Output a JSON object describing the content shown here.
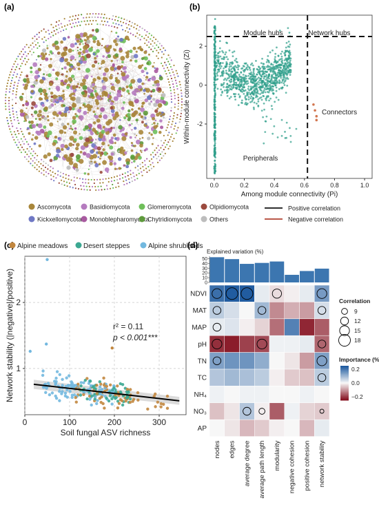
{
  "panels": {
    "a": {
      "label": "(a)"
    },
    "b": {
      "label": "(b)"
    },
    "c": {
      "label": "(c)"
    },
    "d": {
      "label": "(d)"
    }
  },
  "network_legend": {
    "phyla": [
      {
        "name": "Ascomycota",
        "color": "#a8863a"
      },
      {
        "name": "Basidiomycota",
        "color": "#b57bbf"
      },
      {
        "name": "Glomeromycota",
        "color": "#6fbf5a"
      },
      {
        "name": "Olpidiomycota",
        "color": "#9b4a3e"
      },
      {
        "name": "Kickxellomycota",
        "color": "#6f78c4"
      },
      {
        "name": "Monoblepharomycota",
        "color": "#a85aa0"
      },
      {
        "name": "Chytridiomycota",
        "color": "#5e9a3c"
      },
      {
        "name": "Others",
        "color": "#bdbdbd"
      }
    ],
    "edges": [
      {
        "name": "Positive correlation",
        "color": "#111111"
      },
      {
        "name": "Negative correlation",
        "color": "#b0402f"
      }
    ]
  },
  "chart_data": [
    {
      "panel": "b",
      "type": "scatter",
      "xlabel": "Among module connectivity (Pi)",
      "ylabel": "Within-module connectivity (Zi)",
      "xlim": [
        -0.05,
        1.05
      ],
      "ylim": [
        -4.8,
        3.6
      ],
      "xticks": [
        "0.0",
        "0.2",
        "0.4",
        "0.6",
        "0.8",
        "1.0"
      ],
      "yticks": [
        "-2",
        "0",
        "2"
      ],
      "thresholds": {
        "x": 0.62,
        "y": 2.5
      },
      "region_labels": [
        "Module hubs",
        "Network hubs",
        "Connectors",
        "Peripherals"
      ],
      "point_colors": {
        "nodes": "#2e9e8a",
        "connectors": "#d2764f"
      },
      "connectors": [
        [
          0.66,
          -1.0
        ],
        [
          0.68,
          -1.6
        ],
        [
          0.68,
          -1.8
        ],
        [
          0.67,
          -1.3
        ]
      ],
      "grid": false
    },
    {
      "panel": "c",
      "type": "scatter",
      "legend": [
        {
          "name": "Alpine meadows",
          "color": "#c2873f"
        },
        {
          "name": "Desert steppes",
          "color": "#3ca892"
        },
        {
          "name": "Alpine shrublands",
          "color": "#72b8df"
        }
      ],
      "legend_placement": "top",
      "xlabel": "Soil fungal ASV richness",
      "ylabel": "Network stability (|negative|/positive)",
      "xlim": [
        0,
        360
      ],
      "ylim": [
        0.3,
        2.7
      ],
      "xticks": [
        "0",
        "100",
        "200",
        "300"
      ],
      "yticks": [
        "1",
        "2"
      ],
      "annotation_r2": "r² = 0.11",
      "annotation_p": "p < 0.001***",
      "fit": {
        "x": [
          20,
          345
        ],
        "y": [
          0.76,
          0.51
        ]
      },
      "outliers": [
        [
          50,
          2.65
        ],
        [
          12,
          1.26
        ],
        [
          48,
          1.37
        ],
        [
          195,
          1.31
        ]
      ],
      "grid": true
    },
    {
      "panel": "d",
      "type": "heatmap",
      "bar_title": "Explained variation (%)",
      "bar_yticks": [
        "0",
        "10",
        "20",
        "30",
        "40",
        "50"
      ],
      "columns": [
        "nodes",
        "edges",
        "average degree",
        "average path length",
        "modularity",
        "negative cohesion",
        "positive cohesion",
        "network stability"
      ],
      "rows": [
        "NDVI",
        "MAT",
        "MAP",
        "pH",
        "TN",
        "TC",
        "NH₄",
        "NO₃",
        "AP"
      ],
      "explained_variation": [
        53,
        49,
        39,
        41,
        44,
        16,
        24,
        29
      ],
      "importance": [
        [
          0.22,
          0.26,
          0.26,
          0.02,
          -0.03,
          -0.01,
          0.02,
          0.15
        ],
        [
          0.07,
          0.04,
          0.0,
          0.1,
          -0.12,
          -0.08,
          -0.1,
          0.04
        ],
        [
          0.02,
          0.03,
          -0.01,
          -0.04,
          -0.15,
          0.19,
          -0.23,
          -0.17
        ],
        [
          -0.22,
          -0.24,
          -0.2,
          -0.19,
          0.01,
          0.01,
          0.02,
          -0.16
        ],
        [
          0.14,
          0.16,
          0.16,
          0.12,
          0.0,
          -0.02,
          -0.1,
          0.14
        ],
        [
          0.08,
          0.1,
          0.09,
          0.07,
          -0.01,
          -0.05,
          -0.06,
          0.07
        ],
        [
          0.01,
          0.0,
          0.01,
          0.01,
          0.0,
          0.0,
          0.01,
          0.0
        ],
        [
          -0.06,
          -0.02,
          0.08,
          -0.01,
          -0.17,
          0.01,
          -0.04,
          -0.05
        ],
        [
          0.0,
          -0.02,
          -0.07,
          -0.05,
          -0.01,
          0.0,
          -0.07,
          0.02
        ]
      ],
      "circles": [
        [
          0,
          0,
          15
        ],
        [
          0,
          1,
          18
        ],
        [
          0,
          2,
          18
        ],
        [
          0,
          4,
          14
        ],
        [
          0,
          7,
          15
        ],
        [
          1,
          0,
          12
        ],
        [
          1,
          3,
          12
        ],
        [
          1,
          7,
          12
        ],
        [
          2,
          0,
          12
        ],
        [
          3,
          0,
          15
        ],
        [
          3,
          3,
          15
        ],
        [
          3,
          7,
          12
        ],
        [
          4,
          0,
          12
        ],
        [
          4,
          7,
          15
        ],
        [
          5,
          7,
          12
        ],
        [
          7,
          2,
          12
        ],
        [
          7,
          3,
          9
        ],
        [
          7,
          7,
          6
        ]
      ],
      "size_legend_title": "Correlation",
      "size_legend": [
        "9",
        "12",
        "15",
        "18"
      ],
      "color_legend_title": "Importance (%)",
      "color_legend_ticks": [
        "0.2",
        "0.0",
        "−0.2"
      ],
      "color_range": [
        -0.25,
        0.25
      ]
    }
  ]
}
